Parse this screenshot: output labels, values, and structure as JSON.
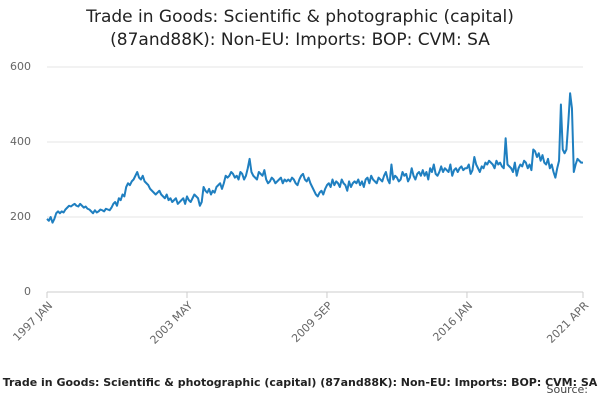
{
  "chart_data": {
    "type": "line",
    "title": "Trade in Goods: Scientific & photographic (capital) (87and88K): Non-EU: Imports: BOP: CVM: SA",
    "source_label": "Source:",
    "categories": [
      "1997 JAN",
      null,
      null,
      null,
      null,
      null,
      null,
      null,
      null,
      null,
      null,
      null,
      null,
      null,
      null,
      null,
      null,
      null,
      null,
      null,
      null,
      null,
      null,
      null,
      null,
      null,
      null,
      null,
      null,
      null,
      null,
      null,
      null,
      null,
      null,
      null,
      null,
      null,
      null,
      null,
      null,
      null,
      null,
      null,
      null,
      null,
      null,
      null,
      null,
      null,
      null,
      null,
      null,
      null,
      null,
      null,
      null,
      null,
      null,
      null,
      null,
      null,
      null,
      null,
      null,
      null,
      null,
      null,
      null,
      null,
      null,
      null,
      null,
      null,
      null,
      null,
      "2003 MAY",
      null,
      null,
      null,
      null,
      null,
      null,
      null,
      null,
      null,
      null,
      null,
      null,
      null,
      null,
      null,
      null,
      null,
      null,
      null,
      null,
      null,
      null,
      null,
      null,
      null,
      null,
      null,
      null,
      null,
      null,
      null,
      null,
      null,
      null,
      null,
      null,
      null,
      null,
      null,
      null,
      null,
      null,
      null,
      null,
      null,
      null,
      null,
      null,
      null,
      null,
      null,
      null,
      null,
      null,
      null,
      null,
      null,
      null,
      null,
      null,
      null,
      null,
      null,
      null,
      null,
      null,
      null,
      null,
      null,
      null,
      null,
      null,
      null,
      null,
      null,
      "2009 SEP",
      null,
      null,
      null,
      null,
      null,
      null,
      null,
      null,
      null,
      null,
      null,
      null,
      null,
      null,
      null,
      null,
      null,
      null,
      null,
      null,
      null,
      null,
      null,
      null,
      null,
      null,
      null,
      null,
      null,
      null,
      null,
      null,
      null,
      null,
      null,
      null,
      null,
      null,
      null,
      null,
      null,
      null,
      null,
      null,
      null,
      null,
      null,
      null,
      null,
      null,
      null,
      null,
      null,
      null,
      null,
      null,
      null,
      null,
      null,
      null,
      null,
      null,
      null,
      null,
      null,
      null,
      null,
      null,
      null,
      null,
      null,
      null,
      null,
      null,
      null,
      "2016 JAN",
      null,
      null,
      null,
      null,
      null,
      null,
      null,
      null,
      null,
      null,
      null,
      null,
      null,
      null,
      null,
      null,
      null,
      null,
      null,
      null,
      null,
      null,
      null,
      null,
      null,
      null,
      null,
      null,
      null,
      null,
      null,
      null,
      null,
      null,
      null,
      null,
      null,
      null,
      null,
      null,
      null,
      null,
      null,
      null,
      null,
      null,
      null,
      null,
      null,
      null,
      null,
      null,
      null,
      null,
      null,
      null,
      null,
      null,
      null,
      null,
      null,
      null,
      "2021 APR"
    ],
    "values": [
      195,
      190,
      200,
      185,
      195,
      210,
      215,
      210,
      215,
      212,
      220,
      225,
      230,
      228,
      232,
      235,
      230,
      228,
      235,
      230,
      225,
      228,
      222,
      220,
      215,
      210,
      218,
      212,
      215,
      220,
      218,
      215,
      222,
      220,
      218,
      225,
      235,
      240,
      230,
      250,
      245,
      260,
      255,
      280,
      290,
      285,
      295,
      300,
      310,
      320,
      305,
      300,
      310,
      295,
      290,
      285,
      275,
      270,
      265,
      260,
      265,
      270,
      260,
      255,
      250,
      260,
      245,
      250,
      240,
      245,
      250,
      235,
      240,
      245,
      250,
      235,
      255,
      245,
      240,
      250,
      260,
      255,
      250,
      230,
      240,
      280,
      270,
      265,
      275,
      260,
      270,
      265,
      280,
      285,
      290,
      275,
      290,
      310,
      305,
      310,
      320,
      315,
      305,
      310,
      300,
      320,
      315,
      300,
      310,
      330,
      355,
      320,
      310,
      305,
      300,
      320,
      315,
      310,
      325,
      300,
      290,
      295,
      305,
      300,
      290,
      295,
      300,
      305,
      290,
      300,
      295,
      300,
      295,
      305,
      300,
      290,
      285,
      300,
      310,
      315,
      300,
      295,
      305,
      290,
      280,
      270,
      260,
      255,
      265,
      270,
      260,
      275,
      285,
      290,
      280,
      300,
      285,
      295,
      290,
      280,
      300,
      290,
      285,
      270,
      295,
      280,
      290,
      295,
      290,
      300,
      285,
      295,
      280,
      300,
      305,
      290,
      310,
      300,
      295,
      290,
      305,
      300,
      295,
      310,
      320,
      300,
      290,
      340,
      300,
      310,
      305,
      295,
      300,
      320,
      310,
      315,
      295,
      305,
      330,
      310,
      300,
      315,
      320,
      310,
      325,
      310,
      320,
      300,
      330,
      320,
      340,
      315,
      310,
      320,
      335,
      320,
      330,
      325,
      320,
      340,
      310,
      325,
      330,
      320,
      330,
      335,
      325,
      330,
      330,
      340,
      315,
      325,
      360,
      340,
      330,
      320,
      335,
      330,
      345,
      340,
      350,
      345,
      340,
      330,
      350,
      340,
      345,
      335,
      330,
      410,
      340,
      335,
      330,
      320,
      345,
      310,
      330,
      340,
      335,
      350,
      345,
      330,
      340,
      325,
      380,
      375,
      360,
      370,
      350,
      365,
      345,
      340,
      355,
      330,
      340,
      320,
      305,
      330,
      350,
      500,
      380,
      370,
      380,
      450,
      530,
      490,
      320,
      340,
      355,
      350,
      345,
      345
    ],
    "color": "#1f7fc0",
    "ylim": [
      0,
      600
    ],
    "yticks": [
      0,
      200,
      400,
      600
    ],
    "grid": true
  }
}
